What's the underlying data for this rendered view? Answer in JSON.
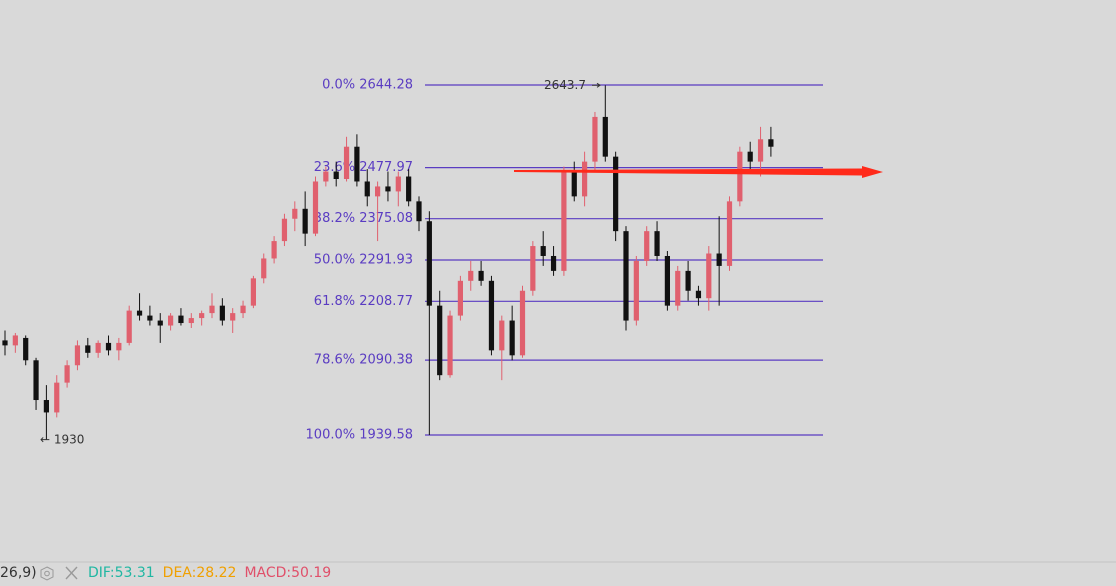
{
  "chart_data": {
    "type": "candlestick",
    "ylim": [
      1643.6,
      2815.4
    ],
    "up_color": "#e0606e",
    "down_color": "#111111",
    "fib_color": "#5a3cc2",
    "fib_levels": [
      {
        "value": 2644.28,
        "label": "0.0% 2644.28"
      },
      {
        "value": 2477.97,
        "label": "23.6% 2477.97"
      },
      {
        "value": 2375.08,
        "label": "38.2% 2375.08"
      },
      {
        "value": 2291.93,
        "label": "50.0% 2291.93"
      },
      {
        "value": 2208.77,
        "label": "61.8% 2208.77"
      },
      {
        "value": 2090.38,
        "label": "78.6% 2090.38"
      },
      {
        "value": 1939.58,
        "label": "100.0% 1939.58"
      }
    ],
    "annotations": [
      {
        "value": 2643.7,
        "label": "2643.7"
      },
      {
        "value": 1930,
        "label": "← 1930"
      }
    ],
    "open": [
      2130,
      2120,
      2135,
      2090,
      2010,
      1985,
      2045,
      2080,
      2120,
      2105,
      2125,
      2110,
      2125,
      2190,
      2180,
      2170,
      2160,
      2180,
      2165,
      2175,
      2185,
      2200,
      2170,
      2185,
      2200,
      2255,
      2295,
      2330,
      2375,
      2395,
      2345,
      2450,
      2470,
      2455,
      2520,
      2450,
      2420,
      2440,
      2430,
      2460,
      2410,
      2370,
      2200,
      2060,
      2180,
      2250,
      2270,
      2250,
      2110,
      2170,
      2100,
      2230,
      2320,
      2300,
      2270,
      2470,
      2420,
      2490,
      2580,
      2500,
      2350,
      2170,
      2290,
      2350,
      2300,
      2200,
      2270,
      2230,
      2215,
      2305,
      2280,
      2410,
      2510,
      2490,
      2535
    ],
    "high": [
      2150,
      2145,
      2140,
      2095,
      2040,
      2060,
      2090,
      2130,
      2135,
      2130,
      2140,
      2135,
      2200,
      2225,
      2200,
      2185,
      2185,
      2195,
      2185,
      2190,
      2225,
      2215,
      2195,
      2210,
      2260,
      2305,
      2340,
      2385,
      2410,
      2430,
      2460,
      2480,
      2490,
      2540,
      2545,
      2475,
      2450,
      2470,
      2470,
      2475,
      2420,
      2390,
      2230,
      2190,
      2260,
      2290,
      2290,
      2260,
      2180,
      2200,
      2240,
      2330,
      2350,
      2320,
      2480,
      2490,
      2510,
      2590,
      2643.7,
      2510,
      2360,
      2300,
      2360,
      2370,
      2310,
      2280,
      2290,
      2240,
      2320,
      2380,
      2420,
      2520,
      2530,
      2560,
      2560
    ],
    "low": [
      2100,
      2105,
      2080,
      1990,
      1930,
      1975,
      2035,
      2070,
      2095,
      2095,
      2100,
      2090,
      2120,
      2170,
      2160,
      2125,
      2150,
      2160,
      2155,
      2160,
      2175,
      2160,
      2145,
      2175,
      2195,
      2245,
      2285,
      2320,
      2350,
      2320,
      2340,
      2440,
      2440,
      2450,
      2440,
      2400,
      2330,
      2410,
      2400,
      2400,
      2350,
      1939.58,
      2050,
      2055,
      2170,
      2230,
      2240,
      2100,
      2050,
      2090,
      2095,
      2220,
      2280,
      2260,
      2260,
      2410,
      2400,
      2470,
      2490,
      2330,
      2150,
      2160,
      2280,
      2290,
      2190,
      2190,
      2210,
      2200,
      2190,
      2200,
      2270,
      2400,
      2470,
      2460,
      2500
    ],
    "close": [
      2120,
      2140,
      2090,
      2010,
      1985,
      2045,
      2080,
      2120,
      2105,
      2125,
      2110,
      2125,
      2190,
      2180,
      2170,
      2160,
      2180,
      2165,
      2175,
      2185,
      2200,
      2170,
      2185,
      2200,
      2255,
      2295,
      2330,
      2375,
      2395,
      2345,
      2450,
      2470,
      2455,
      2520,
      2450,
      2420,
      2440,
      2430,
      2460,
      2410,
      2370,
      2200,
      2060,
      2180,
      2250,
      2270,
      2250,
      2110,
      2170,
      2100,
      2230,
      2320,
      2300,
      2270,
      2470,
      2420,
      2490,
      2580,
      2500,
      2350,
      2170,
      2290,
      2350,
      2300,
      2200,
      2270,
      2230,
      2215,
      2305,
      2280,
      2410,
      2510,
      2490,
      2535,
      2520
    ]
  },
  "status_bar": {
    "params": "26,9)",
    "items": [
      {
        "label": "DIF:53.31",
        "color": "#1fb7a2"
      },
      {
        "label": "DEA:28.22",
        "color": "#f0a000"
      },
      {
        "label": "MACD:50.19",
        "color": "#e0506a"
      }
    ]
  }
}
